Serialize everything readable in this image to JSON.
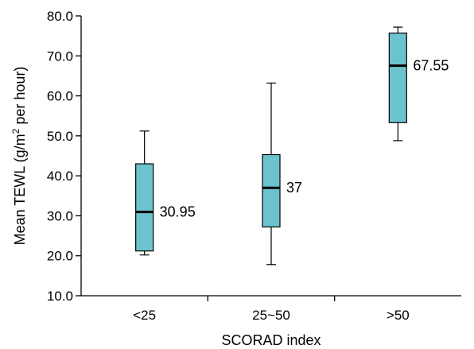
{
  "chart_data": {
    "type": "box",
    "xlabel": "SCORAD index",
    "ylabel": "Mean TEWL (g/m",
    "ylabel_superscript": "2",
    "ylabel_suffix": " per hour)",
    "ylim": [
      10,
      80
    ],
    "yticks": [
      10,
      20,
      30,
      40,
      50,
      60,
      70,
      80
    ],
    "ytick_labels": [
      "10.0",
      "20.0",
      "30.0",
      "40.0",
      "50.0",
      "60.0",
      "70.0",
      "80.0"
    ],
    "categories": [
      "<25",
      "25~50",
      ">50"
    ],
    "box_color": "#6cc3cd",
    "boxes": [
      {
        "category": "<25",
        "min": 20.2,
        "q1": 21.2,
        "median": 30.95,
        "q3": 43.0,
        "max": 51.2,
        "median_label": "30.95"
      },
      {
        "category": "25~50",
        "min": 17.8,
        "q1": 27.2,
        "median": 37,
        "q3": 45.3,
        "max": 63.2,
        "median_label": "37"
      },
      {
        "category": ">50",
        "min": 48.8,
        "q1": 53.3,
        "median": 67.55,
        "q3": 75.7,
        "max": 77.2,
        "median_label": "67.55"
      }
    ]
  }
}
